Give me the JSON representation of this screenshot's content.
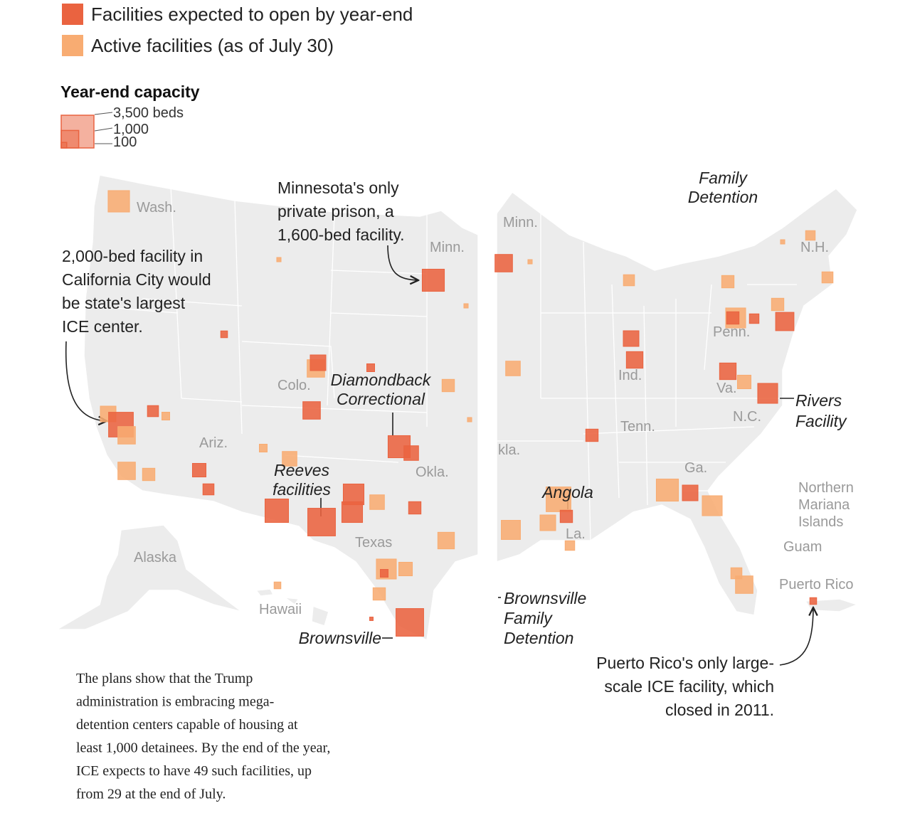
{
  "legend": {
    "entries": [
      {
        "label": "Facilities expected to open by year-end",
        "color": "#ea6340"
      },
      {
        "label": "Active facilities (as of July 30)",
        "color": "#f8ac72"
      }
    ],
    "size_title": "Year-end capacity",
    "size_ticks": [
      {
        "value": 3500,
        "label": "3,500 beds"
      },
      {
        "value": 1000,
        "label": "1,000"
      },
      100
    ]
  },
  "places": [
    "Wash.",
    "Minn.",
    "Colo.",
    "Ariz.",
    "Okla.",
    "Texas",
    "Alaska",
    "Hawaii",
    "Minn.",
    "N.H.",
    "Penn.",
    "Ind.",
    "Va.",
    "N.C.",
    "Tenn.",
    "kla.",
    "Ga.",
    "La.",
    "Northern",
    "Mariana",
    "Islands",
    "Guam",
    "Puerto Rico"
  ],
  "annotations": [
    [
      "Minnesota's only",
      "private prison, a",
      "1,600-bed facility."
    ],
    [
      "2,000-bed facility in",
      "California City would",
      "be state's largest",
      "ICE center."
    ],
    [
      "Family",
      "Detention"
    ],
    [
      "Diamondback",
      "Correctional"
    ],
    [
      "Reeves",
      "facilities"
    ],
    [
      "Rivers",
      "Facility"
    ],
    [
      "Angola"
    ],
    [
      "Brownsville"
    ],
    [
      "Brownsville",
      "Family",
      "Detention"
    ],
    [
      "Puerto Rico's only large-",
      "scale ICE facility, which",
      "closed in 2011."
    ]
  ],
  "facilities": [
    {
      "kind": 1,
      "beds": 1500
    },
    {
      "kind": 1,
      "beds": 800
    },
    {
      "kind": 0,
      "beds": 2000
    },
    {
      "kind": 1,
      "beds": 1000
    },
    {
      "kind": 1,
      "beds": 1000
    },
    {
      "kind": 1,
      "beds": 500
    },
    {
      "kind": 0,
      "beds": 600
    },
    {
      "kind": 0,
      "beds": 400
    },
    {
      "kind": 0,
      "beds": 400
    },
    {
      "kind": 1,
      "beds": 200
    },
    {
      "kind": 0,
      "beds": 150
    },
    {
      "kind": 1,
      "beds": 1000
    },
    {
      "kind": 0,
      "beds": 800
    },
    {
      "kind": 0,
      "beds": 1000
    },
    {
      "kind": 0,
      "beds": 200
    },
    {
      "kind": 0,
      "beds": 1600
    },
    {
      "kind": 1,
      "beds": 500
    },
    {
      "kind": 0,
      "beds": 1600
    },
    {
      "kind": 0,
      "beds": 700
    },
    {
      "kind": 1,
      "beds": 700
    },
    {
      "kind": 0,
      "beds": 1800
    },
    {
      "kind": 0,
      "beds": 2500
    },
    {
      "kind": 0,
      "beds": 1400
    },
    {
      "kind": 0,
      "beds": 1400
    },
    {
      "kind": 1,
      "beds": 700
    },
    {
      "kind": 0,
      "beds": 500
    },
    {
      "kind": 1,
      "beds": 900
    },
    {
      "kind": 1,
      "beds": 1300
    },
    {
      "kind": 0,
      "beds": 200
    },
    {
      "kind": 1,
      "beds": 600
    },
    {
      "kind": 1,
      "beds": 500
    },
    {
      "kind": 0,
      "beds": 2500
    },
    {
      "kind": 1,
      "beds": 150
    },
    {
      "kind": 1,
      "beds": 200
    },
    {
      "kind": 0,
      "beds": 1000
    },
    {
      "kind": 1,
      "beds": 700
    },
    {
      "kind": 1,
      "beds": 400
    },
    {
      "kind": 0,
      "beds": 800
    },
    {
      "kind": 0,
      "beds": 900
    },
    {
      "kind": 1,
      "beds": 500
    },
    {
      "kind": 1,
      "beds": 1300
    },
    {
      "kind": 0,
      "beds": 500
    },
    {
      "kind": 0,
      "beds": 300
    },
    {
      "kind": 1,
      "beds": 500
    },
    {
      "kind": 0,
      "beds": 1100
    },
    {
      "kind": 0,
      "beds": 900
    },
    {
      "kind": 1,
      "beds": 600
    },
    {
      "kind": 0,
      "beds": 1300
    },
    {
      "kind": 0,
      "beds": 500
    },
    {
      "kind": 1,
      "beds": 2000
    },
    {
      "kind": 0,
      "beds": 500
    },
    {
      "kind": 1,
      "beds": 800
    },
    {
      "kind": 1,
      "beds": 1200
    },
    {
      "kind": 1,
      "beds": 1600
    },
    {
      "kind": 0,
      "beds": 800
    },
    {
      "kind": 1,
      "beds": 1300
    },
    {
      "kind": 1,
      "beds": 1000
    },
    {
      "kind": 1,
      "beds": 400
    },
    {
      "kind": 1,
      "beds": 300
    },
    {
      "kind": 1,
      "beds": 400
    },
    {
      "kind": 0,
      "beds": 150
    },
    {
      "kind": 1,
      "beds": 300
    },
    {
      "kind": 1,
      "beds": 60
    },
    {
      "kind": 1,
      "beds": 60
    },
    {
      "kind": 1,
      "beds": 60
    },
    {
      "kind": 0,
      "beds": 40
    },
    {
      "kind": 1,
      "beds": 60
    },
    {
      "kind": 1,
      "beds": 60
    }
  ],
  "paragraph": [
    "The plans show that the Trump",
    "administration is embracing mega-",
    "detention centers capable of housing at",
    "least 1,000 detainees. By the end of the year,",
    "ICE expects to have 49 such facilities, up",
    "from 29 at the end of July."
  ]
}
